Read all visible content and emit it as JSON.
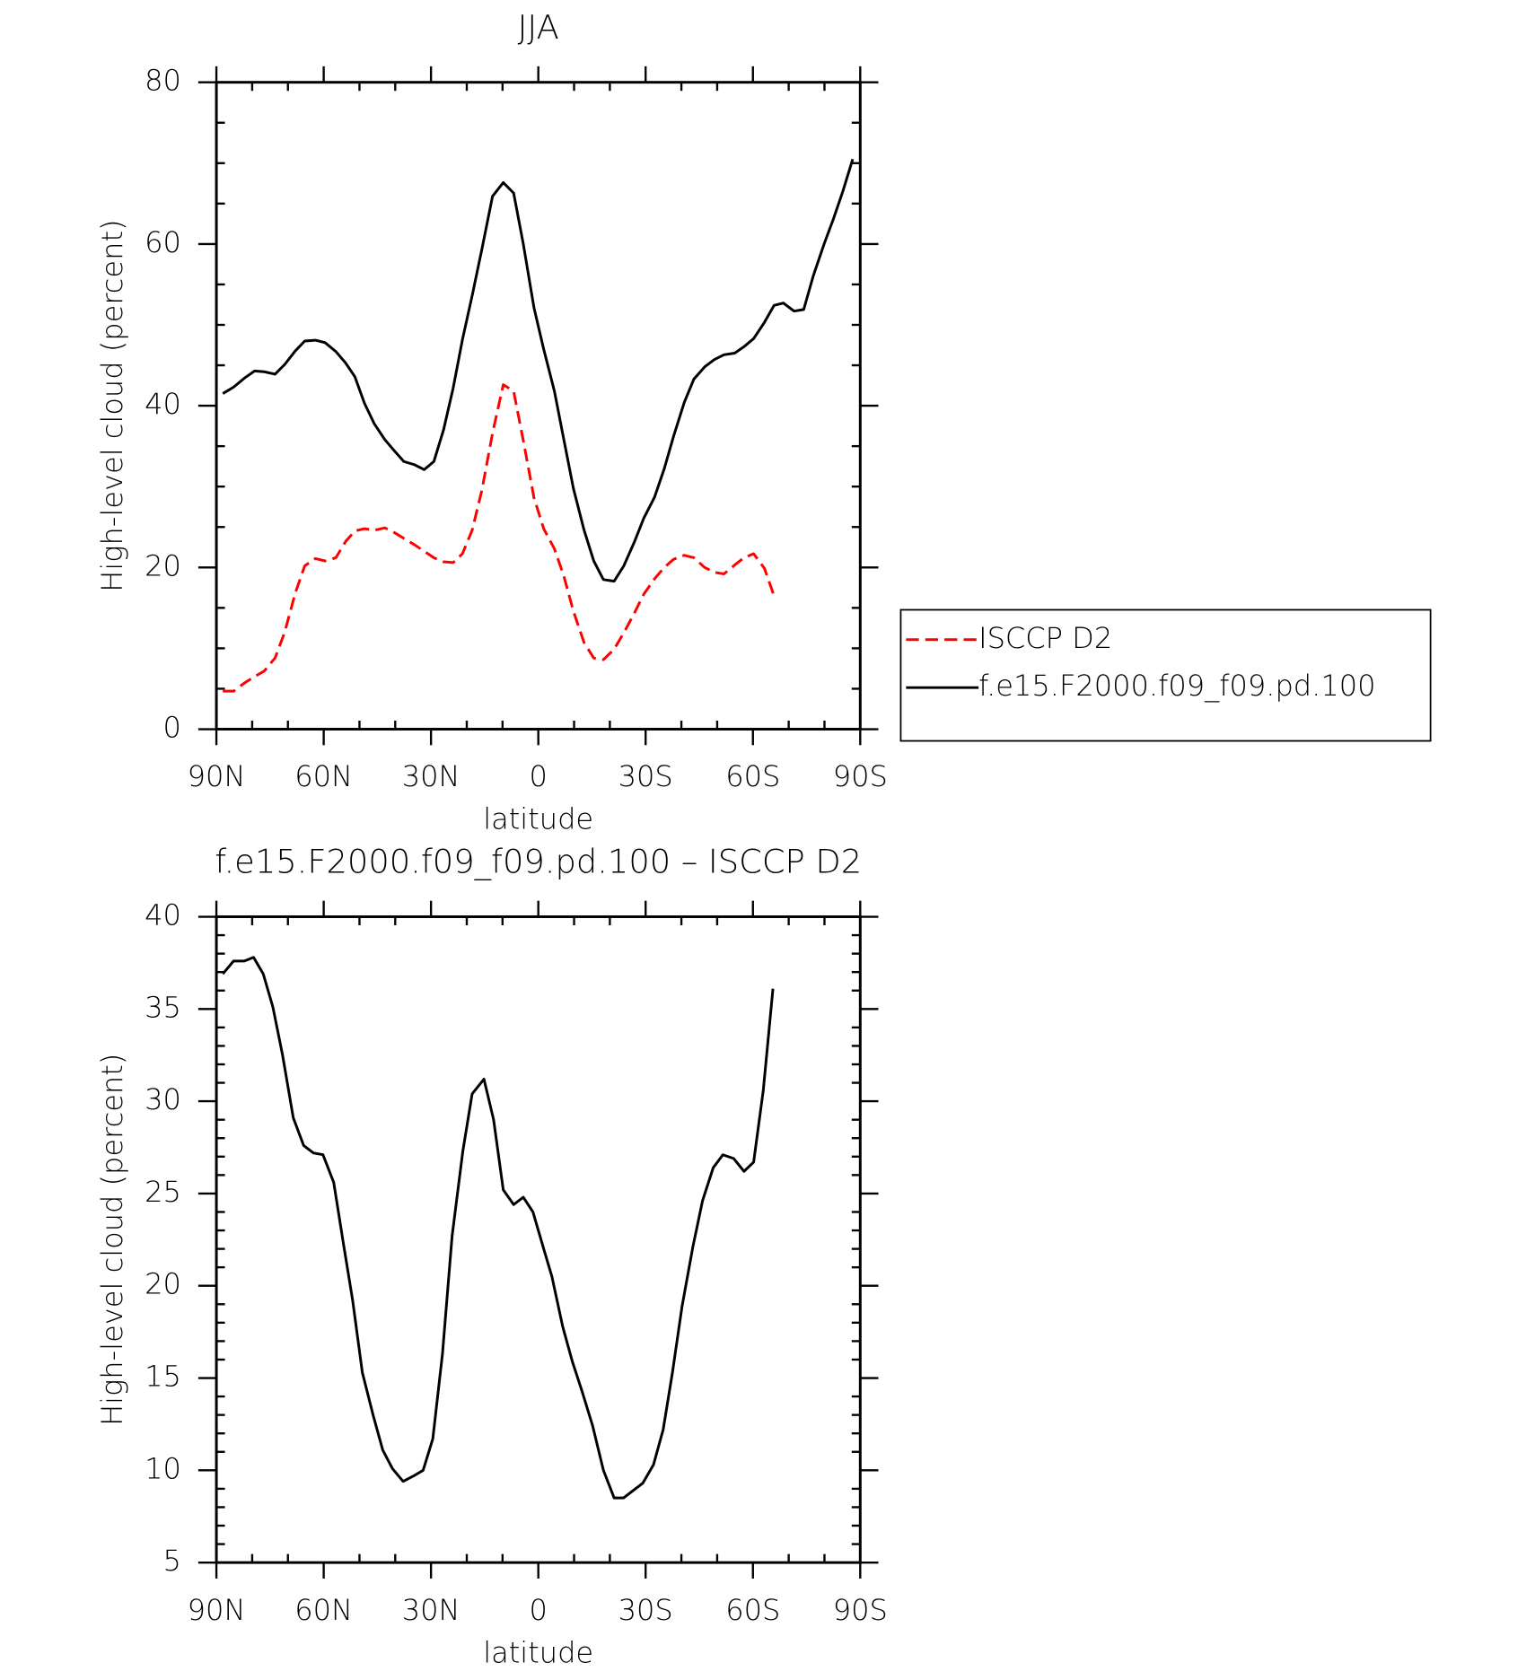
{
  "chart_data": [
    {
      "type": "line",
      "title": "JJA",
      "xlabel": "latitude",
      "ylabel": "High-level cloud (percent)",
      "x": [
        88.2,
        85.2,
        82.2,
        79.3,
        76.6,
        73.6,
        70.9,
        67.9,
        65.3,
        62.3,
        59.6,
        56.6,
        53.9,
        51.3,
        48.6,
        45.9,
        42.9,
        40.2,
        37.6,
        34.6,
        31.9,
        29.2,
        26.5,
        23.8,
        21.2,
        18.5,
        15.8,
        12.8,
        9.8,
        6.9,
        4.2,
        1.2,
        -1.5,
        -4.5,
        -7.1,
        -9.8,
        -12.8,
        -15.5,
        -18.2,
        -21.2,
        -23.9,
        -26.9,
        -29.5,
        -32.5,
        -35.2,
        -37.8,
        -40.8,
        -43.5,
        -46.5,
        -49.2,
        -51.9,
        -54.9,
        -57.5,
        -60.2,
        -63.2,
        -65.9,
        -68.5,
        -71.5,
        -74.2,
        -76.9,
        -79.9,
        -82.5,
        -85.2,
        -87.9
      ],
      "xlim": [
        90,
        -90
      ],
      "xticks": [
        {
          "value": 90,
          "label": "90N"
        },
        {
          "value": 60,
          "label": "60N"
        },
        {
          "value": 30,
          "label": "30N"
        },
        0,
        {
          "value": -30,
          "label": "30S"
        },
        {
          "value": -60,
          "label": "60S"
        },
        {
          "value": -90,
          "label": "90S"
        }
      ],
      "ylim": [
        0,
        80
      ],
      "yticks": [
        0,
        20,
        40,
        60,
        80
      ],
      "legend": "right",
      "series": [
        {
          "name": "ISCCP D2",
          "color": "#ff0000",
          "linestyle": "dashed",
          "values": [
            4.7,
            4.7,
            5.7,
            6.5,
            7.2,
            8.8,
            12.0,
            16.9,
            20.2,
            21.1,
            20.8,
            21.2,
            23.2,
            24.5,
            24.8,
            24.6,
            24.9,
            24.3,
            23.6,
            22.8,
            22.0,
            21.2,
            20.7,
            20.6,
            21.7,
            24.6,
            29.5,
            36.6,
            42.6,
            41.8,
            35.7,
            28.6,
            24.8,
            22.3,
            19.0,
            14.6,
            10.7,
            8.8,
            8.6,
            9.9,
            11.9,
            14.4,
            16.7,
            18.6,
            20.0,
            21.0,
            21.5,
            21.2,
            20.0,
            19.4,
            19.2,
            20.3,
            21.2,
            21.7,
            19.9,
            16.5,
            null,
            null,
            null,
            null,
            null,
            null,
            null,
            null
          ]
        },
        {
          "name": "f.e15.F2000.f09_f09.pd.100",
          "color": "#000000",
          "linestyle": "solid",
          "values": [
            41.5,
            42.3,
            43.4,
            44.3,
            44.2,
            43.9,
            45.1,
            46.8,
            48.0,
            48.1,
            47.8,
            46.7,
            45.3,
            43.6,
            40.3,
            37.8,
            35.8,
            34.4,
            33.1,
            32.7,
            32.1,
            33.1,
            37.0,
            42.2,
            48.2,
            53.6,
            59.3,
            65.9,
            67.6,
            66.3,
            60.0,
            52.1,
            47.0,
            41.8,
            35.9,
            29.8,
            24.6,
            20.8,
            18.5,
            18.3,
            20.2,
            23.2,
            26.1,
            28.7,
            32.2,
            36.2,
            40.4,
            43.3,
            44.8,
            45.7,
            46.3,
            46.5,
            47.3,
            48.3,
            50.3,
            52.4,
            52.7,
            51.7,
            51.9,
            56.1,
            60.0,
            63.1,
            66.6,
            70.5
          ]
        }
      ]
    },
    {
      "type": "line",
      "title": "f.e15.F2000.f09_f09.pd.100 – ISCCP D2",
      "xlabel": "latitude",
      "ylabel": "High-level cloud (percent)",
      "x": [
        88.2,
        85.2,
        82.2,
        79.6,
        76.9,
        74.2,
        71.5,
        68.5,
        65.6,
        62.9,
        60.2,
        57.2,
        54.5,
        51.9,
        49.2,
        46.2,
        43.5,
        40.8,
        37.8,
        34.8,
        32.2,
        29.5,
        26.8,
        24.1,
        21.1,
        18.5,
        15.2,
        12.5,
        9.8,
        6.9,
        4.2,
        1.5,
        -1.2,
        -3.8,
        -6.8,
        -9.5,
        -12.2,
        -15.2,
        -18.2,
        -21.2,
        -23.8,
        -26.5,
        -29.2,
        -32.2,
        -34.9,
        -37.5,
        -40.2,
        -43.2,
        -45.9,
        -48.9,
        -51.6,
        -54.6,
        -57.5,
        -60.2,
        -62.9,
        -65.6
      ],
      "xlim": [
        90,
        -90
      ],
      "xticks": [
        {
          "value": 90,
          "label": "90N"
        },
        {
          "value": 60,
          "label": "60N"
        },
        {
          "value": 30,
          "label": "30N"
        },
        0,
        {
          "value": -30,
          "label": "30S"
        },
        {
          "value": -60,
          "label": "60S"
        },
        {
          "value": -90,
          "label": "90S"
        }
      ],
      "ylim": [
        5,
        40
      ],
      "yticks": [
        5,
        10,
        15,
        20,
        25,
        30,
        35,
        40
      ],
      "color": "#000000",
      "values": [
        36.9,
        37.6,
        37.6,
        37.8,
        36.9,
        35.1,
        32.5,
        29.1,
        27.6,
        27.2,
        27.1,
        25.6,
        22.3,
        19.2,
        15.3,
        13.0,
        11.1,
        10.1,
        9.4,
        9.7,
        10.0,
        11.7,
        16.3,
        22.7,
        27.3,
        30.4,
        31.2,
        29.0,
        25.2,
        24.4,
        24.8,
        24.0,
        22.2,
        20.5,
        17.8,
        15.9,
        14.3,
        12.4,
        10.0,
        8.5,
        8.5,
        8.9,
        9.3,
        10.3,
        12.2,
        15.3,
        18.9,
        22.1,
        24.6,
        26.4,
        27.1,
        26.9,
        26.2,
        26.7,
        30.6,
        36.1
      ]
    }
  ]
}
